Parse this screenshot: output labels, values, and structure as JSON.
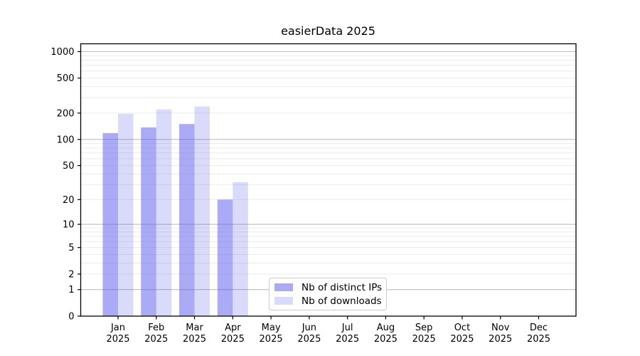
{
  "figure": {
    "background": "#ffffff"
  },
  "chart_data": {
    "type": "bar",
    "title": "easierData 2025",
    "x_categories": [
      "Jan",
      "Feb",
      "Mar",
      "Apr",
      "May",
      "Jun",
      "Jul",
      "Aug",
      "Sep",
      "Oct",
      "Nov",
      "Dec"
    ],
    "x_year_label": "2025",
    "series": [
      {
        "name": "Nb of distinct IPs",
        "color": "rgba(85,85,238,0.5)",
        "color_on_white": "#aaaaf7",
        "values": [
          118,
          137,
          150,
          20,
          0,
          0,
          0,
          0,
          0,
          0,
          0,
          0
        ]
      },
      {
        "name": "Nb of downloads",
        "color": "rgba(85,85,238,0.22)",
        "color_on_white": "#dadaf8",
        "values": [
          196,
          220,
          238,
          32,
          0,
          0,
          0,
          0,
          0,
          0,
          0,
          0
        ]
      }
    ],
    "y_scale": "log10(value+1)",
    "y_ticks": [
      0,
      1,
      2,
      5,
      10,
      20,
      50,
      100,
      200,
      500,
      1000
    ],
    "y_axis_top_value": 1227,
    "ylim": [
      0,
      1227
    ],
    "grid": "both",
    "grid_major_at": [
      1,
      10,
      100,
      1000
    ],
    "legend_position": "inside lower-center-left",
    "legend_title": ""
  },
  "colors": {
    "grid_major": "#bdbdbd",
    "grid_minor": "#ebebeb",
    "axis": "#000000",
    "tick_text": "#000000",
    "legend_border": "#cccccc",
    "legend_bg": "rgba(255,255,255,0.9)"
  }
}
